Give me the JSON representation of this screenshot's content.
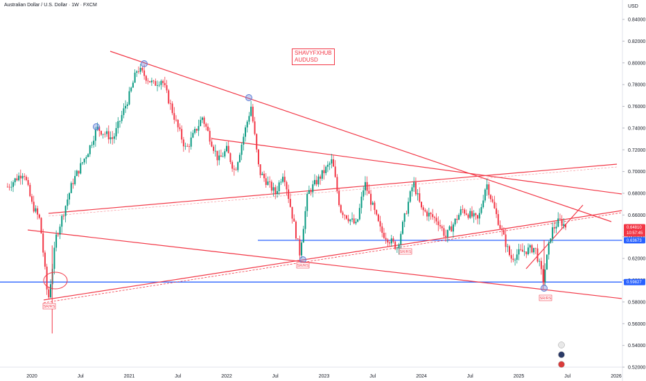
{
  "header": {
    "title": "Australian Dollar / U.S. Dollar · 1W · FXCM"
  },
  "yaxis": {
    "unit": "USD"
  },
  "annotation": {
    "line1": "SHAVYFXHUB",
    "line2": "AUDUSD"
  },
  "price_tags": {
    "current": {
      "value": "0.64810",
      "countdown": "10:57:45",
      "color": "#f23645"
    },
    "level_1": {
      "value": "0.63673",
      "color": "#2962ff"
    },
    "level_2": {
      "value": "0.59827",
      "color": "#2962ff"
    }
  },
  "sr_labels": [
    "SR/RS",
    "SR/RS",
    "SR/RS",
    "SR/RS"
  ],
  "colors": {
    "up": "#089981",
    "down": "#f23645",
    "trend": "#f23645",
    "support": "#2962ff"
  },
  "chart_data": {
    "type": "candlestick",
    "title": "Australian Dollar / U.S. Dollar · 1W · FXCM",
    "ylim": [
      0.5,
      0.85
    ],
    "yticks": [
      "0.84000",
      "0.82000",
      "0.80000",
      "0.78000",
      "0.76000",
      "0.74000",
      "0.72000",
      "0.70000",
      "0.68000",
      "0.66000",
      "0.64000",
      "0.62000",
      "0.60000",
      "0.58000",
      "0.56000",
      "0.54000",
      "0.52000"
    ],
    "xticks": [
      "2020",
      "Jul",
      "2021",
      "Jul",
      "2022",
      "Jul",
      "2023",
      "Jul",
      "2024",
      "Jul",
      "2025",
      "Jul",
      "2026"
    ],
    "horizontal_levels": [
      0.63673,
      0.59827
    ],
    "price_path": [
      [
        "2019-10",
        0.686
      ],
      [
        "2019-12",
        0.7
      ],
      [
        "2020-01",
        0.67
      ],
      [
        "2020-02",
        0.655
      ],
      [
        "2020-03",
        0.58
      ],
      [
        "2020-04",
        0.64
      ],
      [
        "2020-06",
        0.69
      ],
      [
        "2020-08",
        0.72
      ],
      [
        "2020-09",
        0.74
      ],
      [
        "2020-11",
        0.73
      ],
      [
        "2021-01",
        0.77
      ],
      [
        "2021-02",
        0.795
      ],
      [
        "2021-04",
        0.78
      ],
      [
        "2021-05",
        0.785
      ],
      [
        "2021-07",
        0.74
      ],
      [
        "2021-08",
        0.72
      ],
      [
        "2021-10",
        0.75
      ],
      [
        "2021-12",
        0.71
      ],
      [
        "2022-01",
        0.72
      ],
      [
        "2022-02",
        0.7
      ],
      [
        "2022-04",
        0.76
      ],
      [
        "2022-05",
        0.7
      ],
      [
        "2022-07",
        0.68
      ],
      [
        "2022-08",
        0.7
      ],
      [
        "2022-10",
        0.625
      ],
      [
        "2022-11",
        0.68
      ],
      [
        "2023-01",
        0.7
      ],
      [
        "2023-02",
        0.71
      ],
      [
        "2023-03",
        0.665
      ],
      [
        "2023-05",
        0.65
      ],
      [
        "2023-06",
        0.69
      ],
      [
        "2023-08",
        0.645
      ],
      [
        "2023-10",
        0.63
      ],
      [
        "2023-12",
        0.69
      ],
      [
        "2024-01",
        0.665
      ],
      [
        "2024-03",
        0.655
      ],
      [
        "2024-04",
        0.64
      ],
      [
        "2024-06",
        0.665
      ],
      [
        "2024-08",
        0.655
      ],
      [
        "2024-09",
        0.69
      ],
      [
        "2024-10",
        0.665
      ],
      [
        "2024-12",
        0.62
      ],
      [
        "2025-01",
        0.625
      ],
      [
        "2025-03",
        0.63
      ],
      [
        "2025-04",
        0.6
      ],
      [
        "2025-05",
        0.645
      ],
      [
        "2025-06",
        0.655
      ],
      [
        "2025-07",
        0.648
      ]
    ]
  }
}
